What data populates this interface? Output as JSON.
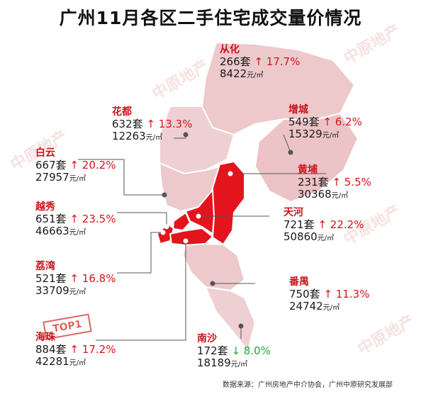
{
  "title": "广州11月各区二手住宅成交量价情况",
  "source": "数据来源：广州房地产中介协会，广州中原研究发展部",
  "badge": "TOP1",
  "watermark": "中原地产",
  "units": {
    "count": "套",
    "price": "元/㎡"
  },
  "colors": {
    "highlight": "#e3141c",
    "base": "#edc9cc",
    "up": "#d4151c",
    "down": "#23a636",
    "name": "#c8141c"
  },
  "districts": [
    {
      "key": "conghua",
      "name": "从化",
      "count": "266",
      "trend": "↑",
      "change": "17.7%",
      "price": "8422"
    },
    {
      "key": "huadu",
      "name": "花都",
      "count": "632",
      "trend": "↑",
      "change": "13.3%",
      "price": "12263"
    },
    {
      "key": "zengcheng",
      "name": "增城",
      "count": "549",
      "trend": "↑",
      "change": "6.2%",
      "price": "15329"
    },
    {
      "key": "baiyun",
      "name": "白云",
      "count": "667",
      "trend": "↑",
      "change": "20.2%",
      "price": "27957"
    },
    {
      "key": "huangpu",
      "name": "黄埔",
      "count": "231",
      "trend": "↑",
      "change": "5.5%",
      "price": "30368"
    },
    {
      "key": "yuexiu",
      "name": "越秀",
      "count": "651",
      "trend": "↑",
      "change": "23.5%",
      "price": "46663"
    },
    {
      "key": "tianhe",
      "name": "天河",
      "count": "721",
      "trend": "↑",
      "change": "22.2%",
      "price": "50860"
    },
    {
      "key": "liwan",
      "name": "荔湾",
      "count": "521",
      "trend": "↑",
      "change": "16.8%",
      "price": "33709"
    },
    {
      "key": "panyu",
      "name": "番禺",
      "count": "750",
      "trend": "↑",
      "change": "11.3%",
      "price": "24742"
    },
    {
      "key": "haizhu",
      "name": "海珠",
      "count": "884",
      "trend": "↑",
      "change": "17.2%",
      "price": "42281"
    },
    {
      "key": "nansha",
      "name": "南沙",
      "count": "172",
      "trend": "↓",
      "change": "8.0%",
      "price": "18189"
    }
  ]
}
